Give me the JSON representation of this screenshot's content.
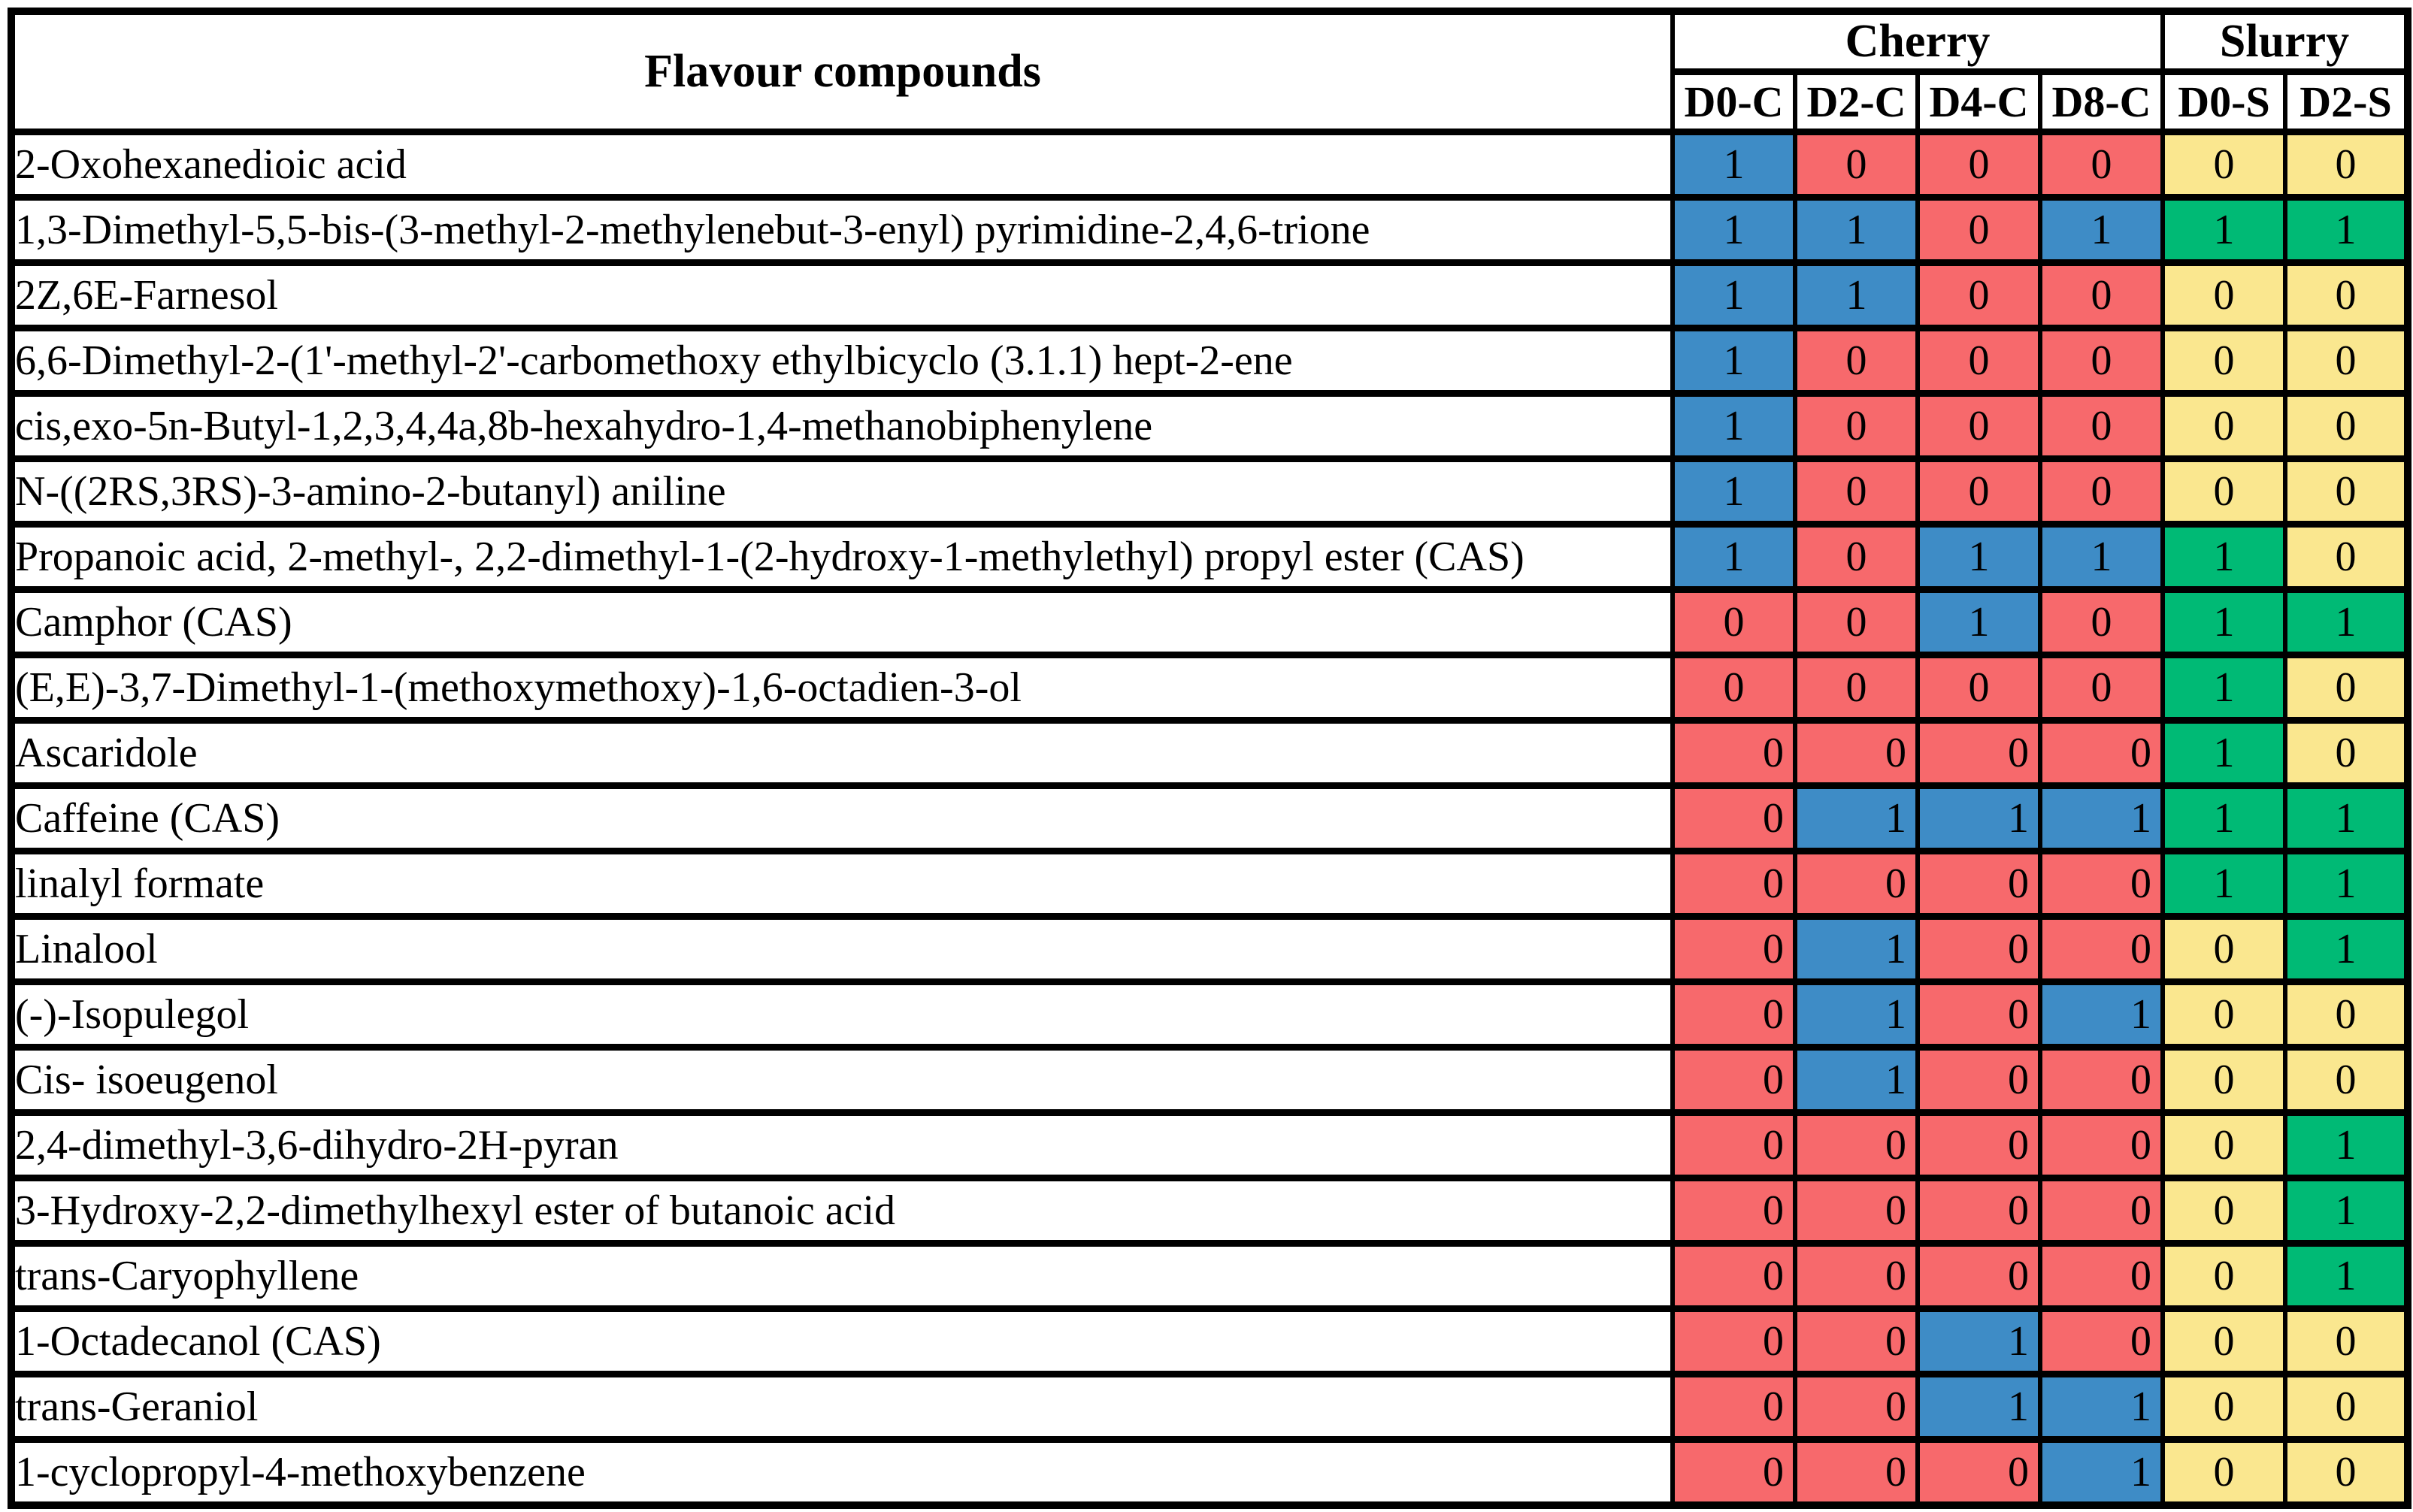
{
  "chart_data": {
    "type": "table",
    "subtype": "binary-presence-heatmap",
    "row_label_header": "Flavour compounds",
    "column_groups": [
      {
        "label": "Cherry",
        "columns": [
          "D0-C",
          "D2-C",
          "D4-C",
          "D8-C"
        ]
      },
      {
        "label": "Slurry",
        "columns": [
          "D0-S",
          "D2-S"
        ]
      }
    ],
    "columns": [
      "D0-C",
      "D2-C",
      "D4-C",
      "D8-C",
      "D0-S",
      "D2-S"
    ],
    "value_encoding": {
      "cherry_1": "blue cell, compound present",
      "cherry_0": "red cell, compound absent",
      "slurry_1": "green cell, compound present",
      "slurry_0": "yellow cell, compound absent"
    },
    "rows": [
      {
        "compound": "2-Oxohexanedioic acid",
        "values": [
          1,
          0,
          0,
          0,
          0,
          0
        ],
        "cherry_value_align": "center"
      },
      {
        "compound": "1,3-Dimethyl-5,5-bis-(3-methyl-2-methylenebut-3-enyl) pyrimidine-2,4,6-trione",
        "values": [
          1,
          1,
          0,
          1,
          1,
          1
        ],
        "cherry_value_align": "center"
      },
      {
        "compound": "2Z,6E-Farnesol",
        "values": [
          1,
          1,
          0,
          0,
          0,
          0
        ],
        "cherry_value_align": "center"
      },
      {
        "compound": "6,6-Dimethyl-2-(1'-methyl-2'-carbomethoxy ethylbicyclo (3.1.1) hept-2-ene",
        "values": [
          1,
          0,
          0,
          0,
          0,
          0
        ],
        "cherry_value_align": "center"
      },
      {
        "compound": "cis,exo-5n-Butyl-1,2,3,4,4a,8b-hexahydro-1,4-methanobiphenylene",
        "values": [
          1,
          0,
          0,
          0,
          0,
          0
        ],
        "cherry_value_align": "center"
      },
      {
        "compound": "N-((2RS,3RS)-3-amino-2-butanyl) aniline",
        "values": [
          1,
          0,
          0,
          0,
          0,
          0
        ],
        "cherry_value_align": "center"
      },
      {
        "compound": "Propanoic acid, 2-methyl-, 2,2-dimethyl-1-(2-hydroxy-1-methylethyl) propyl ester (CAS)",
        "values": [
          1,
          0,
          1,
          1,
          1,
          0
        ],
        "cherry_value_align": "center"
      },
      {
        "compound": "Camphor (CAS)",
        "values": [
          0,
          0,
          1,
          0,
          1,
          1
        ],
        "cherry_value_align": "center"
      },
      {
        "compound": "(E,E)-3,7-Dimethyl-1-(methoxymethoxy)-1,6-octadien-3-ol",
        "values": [
          0,
          0,
          0,
          0,
          1,
          0
        ],
        "cherry_value_align": "center"
      },
      {
        "compound": "Ascaridole",
        "values": [
          0,
          0,
          0,
          0,
          1,
          0
        ],
        "cherry_value_align": "right"
      },
      {
        "compound": "Caffeine (CAS)",
        "values": [
          0,
          1,
          1,
          1,
          1,
          1
        ],
        "cherry_value_align": "right"
      },
      {
        "compound": "linalyl formate",
        "values": [
          0,
          0,
          0,
          0,
          1,
          1
        ],
        "cherry_value_align": "right"
      },
      {
        "compound": "Linalool",
        "values": [
          0,
          1,
          0,
          0,
          0,
          1
        ],
        "cherry_value_align": "right"
      },
      {
        "compound": "(-)-Isopulegol",
        "values": [
          0,
          1,
          0,
          1,
          0,
          0
        ],
        "cherry_value_align": "right"
      },
      {
        "compound": "Cis- isoeugenol",
        "values": [
          0,
          1,
          0,
          0,
          0,
          0
        ],
        "cherry_value_align": "right"
      },
      {
        "compound": "2,4-dimethyl-3,6-dihydro-2H-pyran",
        "values": [
          0,
          0,
          0,
          0,
          0,
          1
        ],
        "cherry_value_align": "right"
      },
      {
        "compound": "3-Hydroxy-2,2-dimethylhexyl ester of butanoic acid",
        "values": [
          0,
          0,
          0,
          0,
          0,
          1
        ],
        "cherry_value_align": "right"
      },
      {
        "compound": "trans-Caryophyllene",
        "values": [
          0,
          0,
          0,
          0,
          0,
          1
        ],
        "cherry_value_align": "right"
      },
      {
        "compound": "1-Octadecanol (CAS)",
        "values": [
          0,
          0,
          1,
          0,
          0,
          0
        ],
        "cherry_value_align": "right"
      },
      {
        "compound": "trans-Geraniol",
        "values": [
          0,
          0,
          1,
          1,
          0,
          0
        ],
        "cherry_value_align": "right"
      },
      {
        "compound": "1-cyclopropyl-4-methoxybenzene",
        "values": [
          0,
          0,
          0,
          1,
          0,
          0
        ],
        "cherry_value_align": "right"
      }
    ],
    "colors": {
      "cherry_present": "#3E8CC6",
      "cherry_absent": "#F7696C",
      "slurry_present": "#00BA75",
      "slurry_absent": "#FAE78F",
      "grid_border": "#000000",
      "background": "#FFFFFF"
    }
  }
}
